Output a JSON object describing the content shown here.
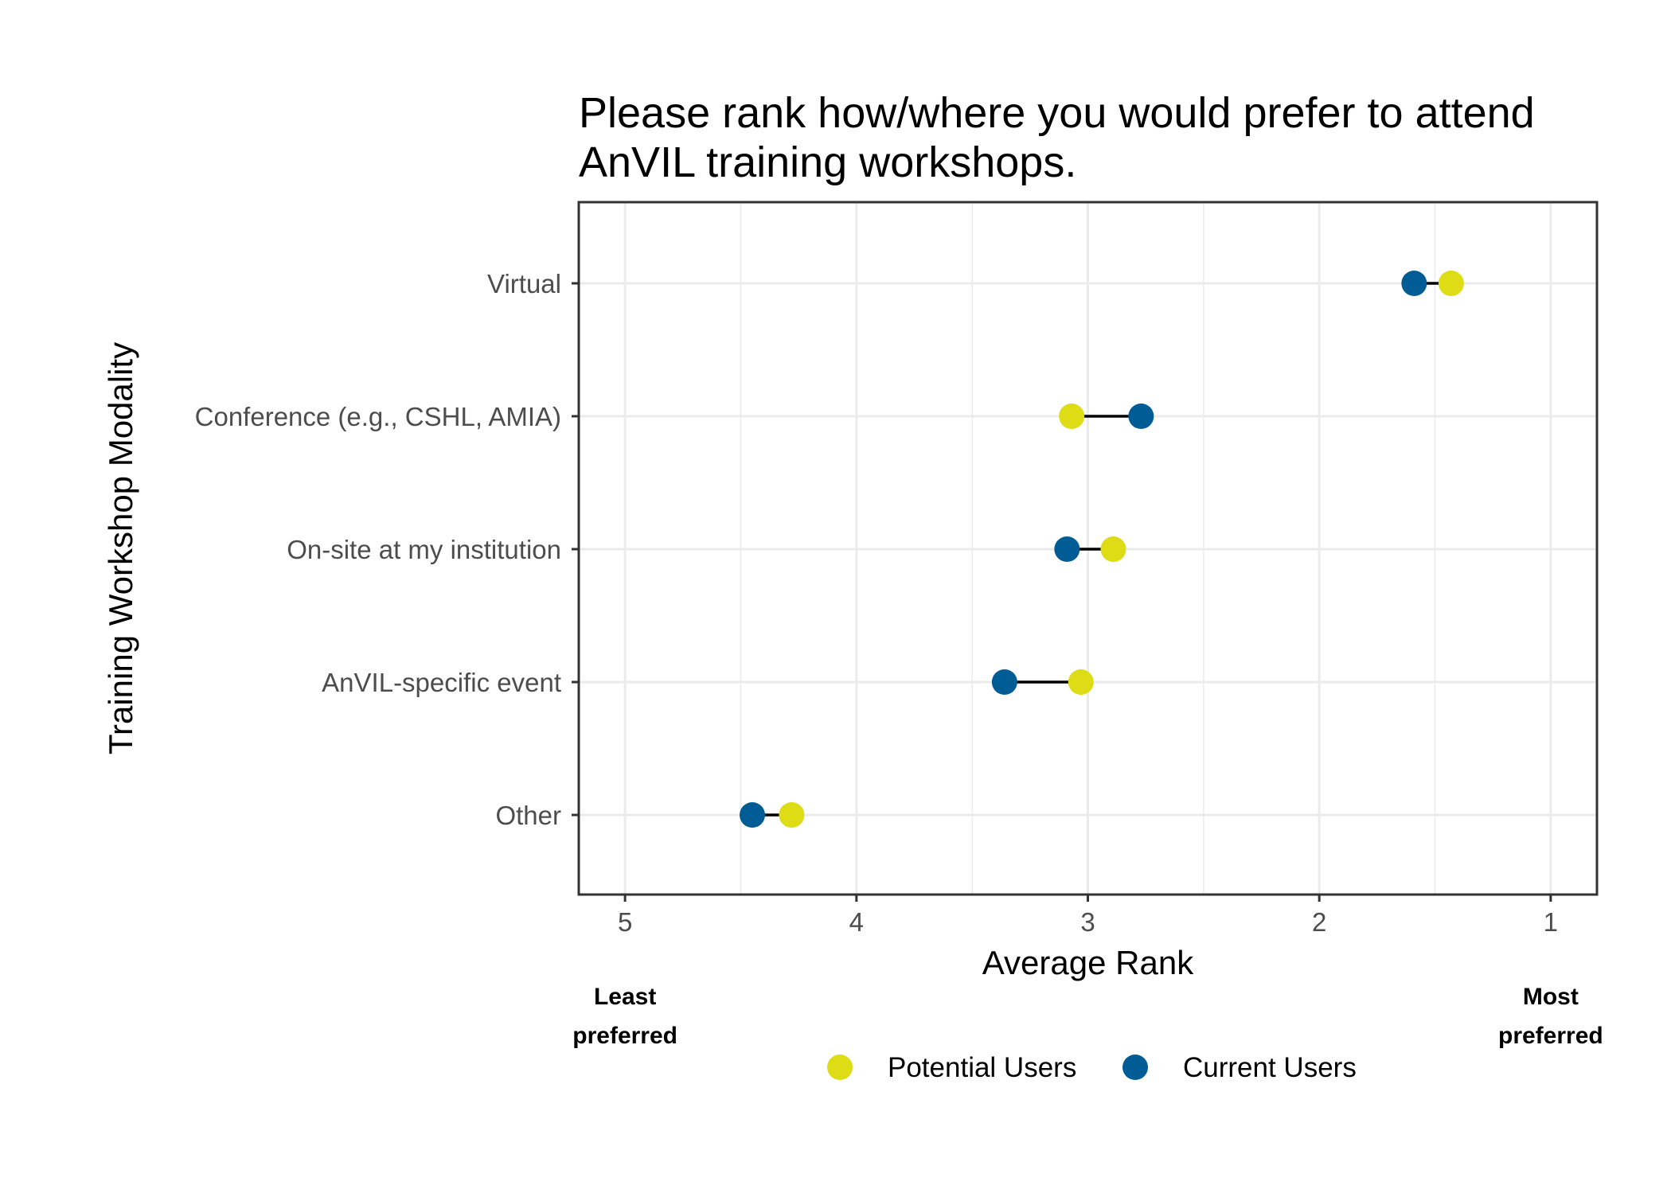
{
  "chart_data": {
    "type": "dumbbell",
    "title_lines": [
      "Please rank how/where you would prefer to attend",
      "AnVIL training workshops."
    ],
    "xlabel": "Average Rank",
    "ylabel": "Training Workshop Modality",
    "x_reversed": true,
    "xlim": [
      5.2,
      0.8
    ],
    "xticks": [
      "5",
      "4",
      "3",
      "2",
      "1"
    ],
    "x_annotations": {
      "left": [
        "Least",
        "preferred"
      ],
      "right": [
        "Most",
        "preferred"
      ]
    },
    "categories": [
      "Virtual",
      "Conference (e.g., CSHL, AMIA)",
      "On-site at my institution",
      "AnVIL-specific event",
      "Other"
    ],
    "series": [
      {
        "name": "Potential Users",
        "color": "#dedc14",
        "values": [
          1.43,
          3.07,
          2.89,
          3.03,
          4.28
        ]
      },
      {
        "name": "Current Users",
        "color": "#005c95",
        "values": [
          1.59,
          2.77,
          3.09,
          3.36,
          4.45
        ]
      }
    ],
    "grid": true,
    "legend_position": "bottom"
  }
}
